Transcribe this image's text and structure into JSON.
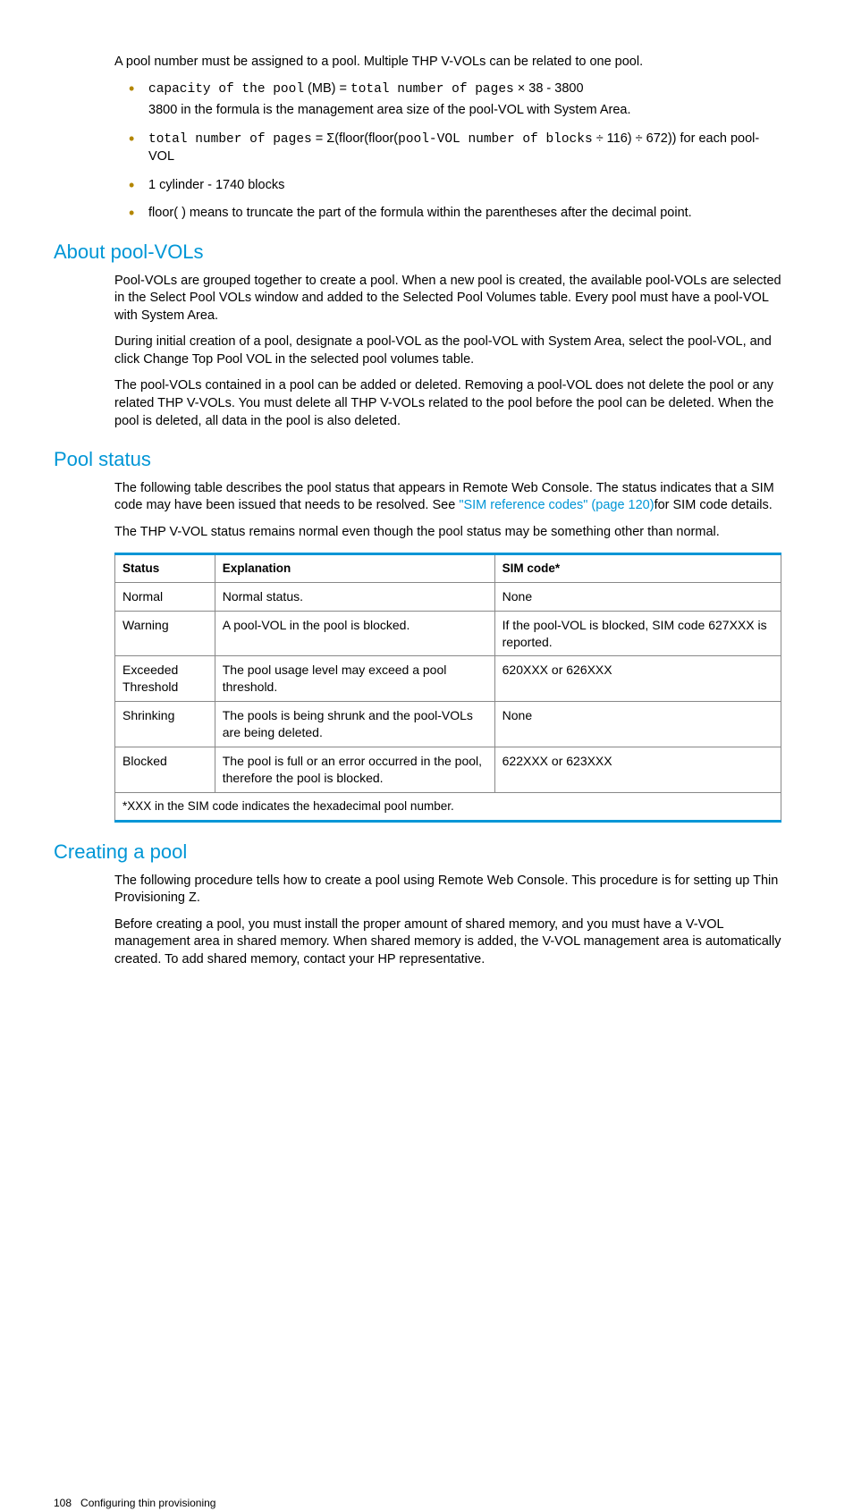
{
  "intro": "A pool number must be assigned to a pool. Multiple THP V-VOLs can be related to one pool.",
  "bullets": {
    "b1_1a": "capacity of the pool",
    "b1_1b": " (MB) = ",
    "b1_1c": "total number of pages",
    "b1_1d": " × 38 - 3800",
    "b1_2": "3800 in the formula is the management area size of the pool-VOL with System Area.",
    "b2_1a": "total number of pages",
    "b2_1b": " = Σ(floor(floor(",
    "b2_1c": "pool-VOL number of blocks",
    "b2_1d": " ÷ 116) ÷ 672)) for each pool-VOL",
    "b3": "1 cylinder - 1740 blocks",
    "b4": "floor( ) means to truncate the part of the formula within the parentheses after the decimal point."
  },
  "sec1": {
    "title": "About pool-VOLs",
    "p1": "Pool-VOLs are grouped together to create a pool. When a new pool is created, the available pool-VOLs are selected in the Select Pool VOLs window and added to the Selected Pool Volumes table. Every pool must have a pool-VOL with System Area.",
    "p2": "During initial creation of a pool, designate a pool-VOL as the pool-VOL with System Area, select the pool-VOL, and click Change Top Pool VOL in the selected pool volumes table.",
    "p3": "The pool-VOLs contained in a pool can be added or deleted. Removing a pool-VOL does not delete the pool or any related THP V-VOLs. You must delete all THP V-VOLs related to the pool before the pool can be deleted. When the pool is deleted, all data in the pool is also deleted."
  },
  "sec2": {
    "title": "Pool status",
    "p1a": "The following table describes the pool status that appears in Remote Web Console. The status indicates that a SIM code may have been issued that needs to be resolved. See ",
    "p1link": "\"SIM reference codes\" (page 120)",
    "p1b": "for SIM code details.",
    "p2": "The THP V-VOL status remains normal even though the pool status may be something other than normal."
  },
  "table": {
    "h1": "Status",
    "h2": "Explanation",
    "h3": "SIM code*",
    "rows": [
      {
        "c1": "Normal",
        "c2": "Normal status.",
        "c3": "None"
      },
      {
        "c1": "Warning",
        "c2": "A pool-VOL in the pool is blocked.",
        "c3": "If the pool-VOL is blocked, SIM code 627XXX is reported."
      },
      {
        "c1": "Exceeded Threshold",
        "c2": "The pool usage level may exceed a pool threshold.",
        "c3": "620XXX or 626XXX"
      },
      {
        "c1": "Shrinking",
        "c2": "The pools is being shrunk and the pool-VOLs are being deleted.",
        "c3": "None"
      },
      {
        "c1": "Blocked",
        "c2": "The pool is full or an error occurred in the pool, therefore the pool is blocked.",
        "c3": "622XXX or 623XXX"
      }
    ],
    "footnote": "*XXX in the SIM code indicates the hexadecimal pool number."
  },
  "sec3": {
    "title": "Creating a pool",
    "p1": "The following procedure tells how to create a pool using Remote Web Console. This procedure is for setting up Thin Provisioning Z.",
    "p2": "Before creating a pool, you must install the proper amount of shared memory, and you must have a V-VOL management area in shared memory. When shared memory is added, the V-VOL management area is automatically created. To add shared memory, contact your HP representative."
  },
  "footer": {
    "page": "108",
    "title": "Configuring thin provisioning"
  }
}
